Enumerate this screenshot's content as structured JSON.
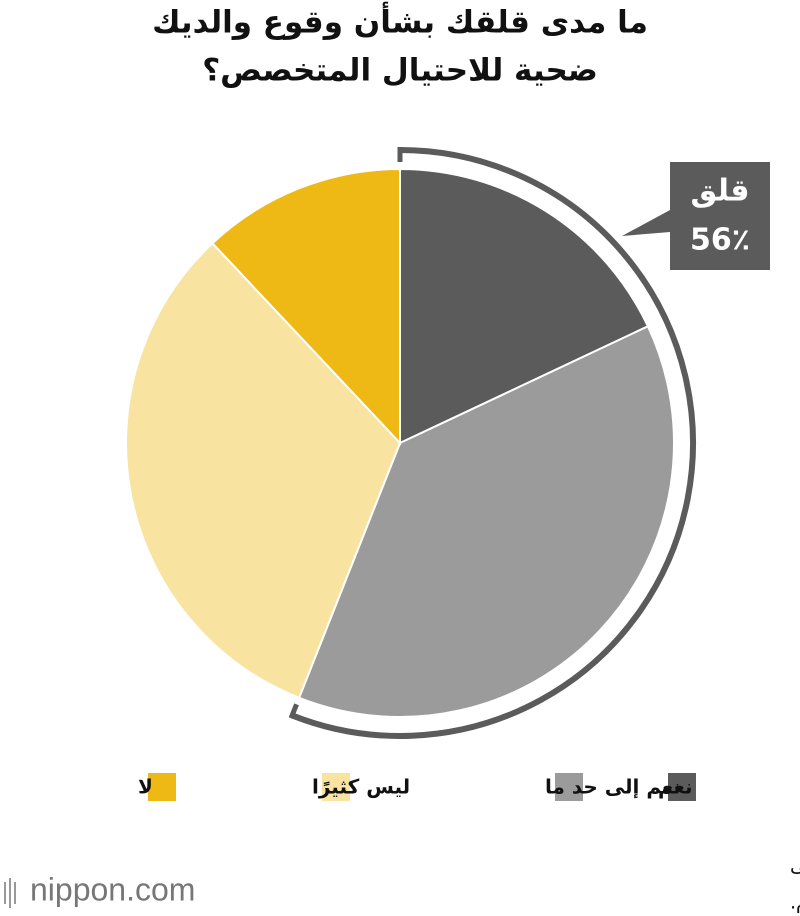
{
  "chart_data": {
    "type": "pie",
    "title": [
      "ما مدى قلقك بشأن وقوع والديك",
      "ضحية للاحتيال المتخصص؟"
    ],
    "categories": [
      "نعم",
      "نعم إلى حد ما",
      "ليس كثيرًا",
      "لا"
    ],
    "values": [
      18,
      38,
      32,
      12
    ],
    "colors": [
      "#5b5b5b",
      "#9b9b9b",
      "#f8e3a0",
      "#efb915"
    ],
    "bracket": {
      "label": "قلق",
      "value": 56,
      "value_label": "56٪",
      "color": "#5b5b5b"
    },
    "footnote": [
      "تم إعداد هذه البيانات بواسطة Nippon.com بناءً على",
      "بيانات من سيكوم."
    ],
    "logo": "nippon.com"
  }
}
